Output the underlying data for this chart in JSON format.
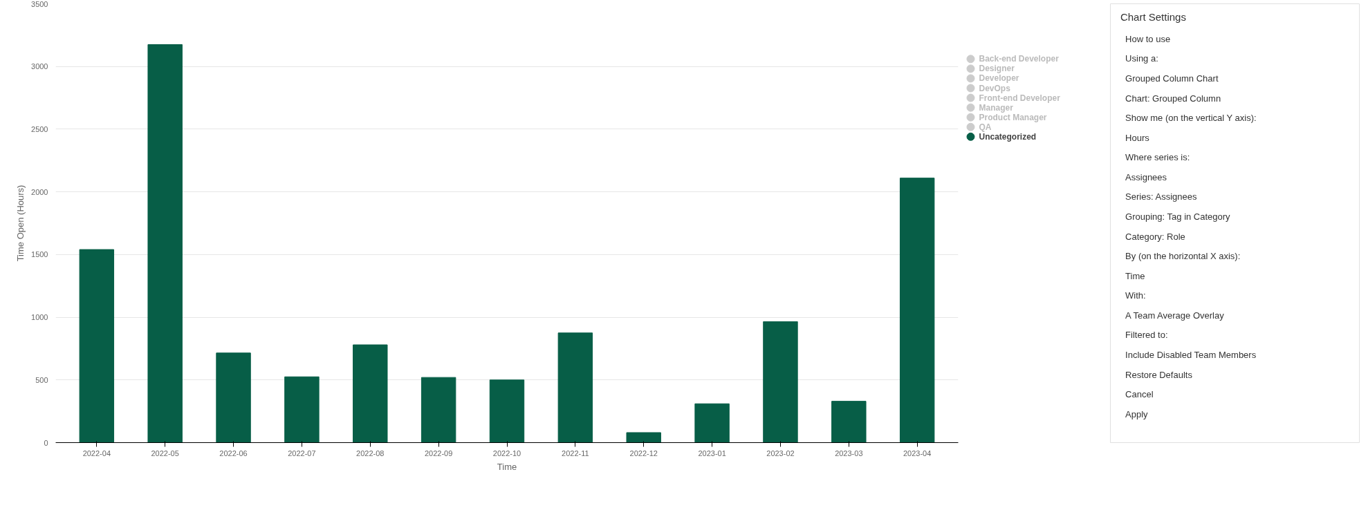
{
  "chart_data": [
    {
      "type": "bar",
      "xlabel": "Time",
      "ylabel": "Time Open (Hours)",
      "categories": [
        "2022-04",
        "2022-05",
        "2022-06",
        "2022-07",
        "2022-08",
        "2022-09",
        "2022-10",
        "2022-11",
        "2022-12",
        "2023-01",
        "2023-02",
        "2023-03",
        "2023-04"
      ],
      "series": [
        {
          "name": "Back-end Developer",
          "color": "#cccccc",
          "values": [
            null,
            null,
            null,
            null,
            null,
            null,
            null,
            null,
            null,
            null,
            null,
            null,
            null
          ]
        },
        {
          "name": "Designer",
          "color": "#cccccc",
          "values": [
            null,
            null,
            null,
            null,
            null,
            null,
            null,
            null,
            null,
            null,
            null,
            null,
            null
          ]
        },
        {
          "name": "Developer",
          "color": "#cccccc",
          "values": [
            null,
            null,
            null,
            null,
            null,
            null,
            null,
            null,
            null,
            null,
            null,
            null,
            null
          ]
        },
        {
          "name": "DevOps",
          "color": "#cccccc",
          "values": [
            null,
            null,
            null,
            null,
            null,
            null,
            null,
            null,
            null,
            null,
            null,
            null,
            null
          ]
        },
        {
          "name": "Front-end Developer",
          "color": "#cccccc",
          "values": [
            null,
            null,
            null,
            null,
            null,
            null,
            null,
            null,
            null,
            null,
            null,
            null,
            null
          ]
        },
        {
          "name": "Manager",
          "color": "#cccccc",
          "values": [
            null,
            null,
            null,
            null,
            null,
            null,
            null,
            null,
            null,
            null,
            null,
            null,
            null
          ]
        },
        {
          "name": "Product Manager",
          "color": "#cccccc",
          "values": [
            null,
            null,
            null,
            null,
            null,
            null,
            null,
            null,
            null,
            null,
            null,
            null,
            null
          ]
        },
        {
          "name": "QA",
          "color": "#cccccc",
          "values": [
            null,
            null,
            null,
            null,
            null,
            null,
            null,
            null,
            null,
            null,
            null,
            null,
            null
          ]
        },
        {
          "name": "Uncategorized",
          "color": "#075e47",
          "values": [
            1540,
            3175,
            715,
            525,
            780,
            520,
            500,
            875,
            80,
            310,
            965,
            330,
            2110
          ]
        }
      ],
      "ylim": [
        0,
        3500
      ],
      "yticks": [
        0,
        500,
        1000,
        1500,
        2000,
        2500,
        3000,
        3500
      ],
      "grid": "y",
      "legend": "top right"
    },
    {
      "type": "other",
      "title": "Chart Settings",
      "annotations": [
        "How to use",
        "Using a:",
        "Grouped Column Chart",
        "Chart: Grouped Column",
        "Show me (on the vertical Y axis):",
        "Hours",
        "Where series is:",
        "Assignees",
        "Series: Assignees",
        "Grouping: Tag in Category",
        "Category: Role",
        "By (on the horizontal X axis):",
        "Time",
        "With:",
        "A Team Average Overlay",
        "Filtered to:",
        "Include Disabled Team Members",
        "Restore Defaults",
        "Cancel",
        "Apply"
      ]
    }
  ]
}
